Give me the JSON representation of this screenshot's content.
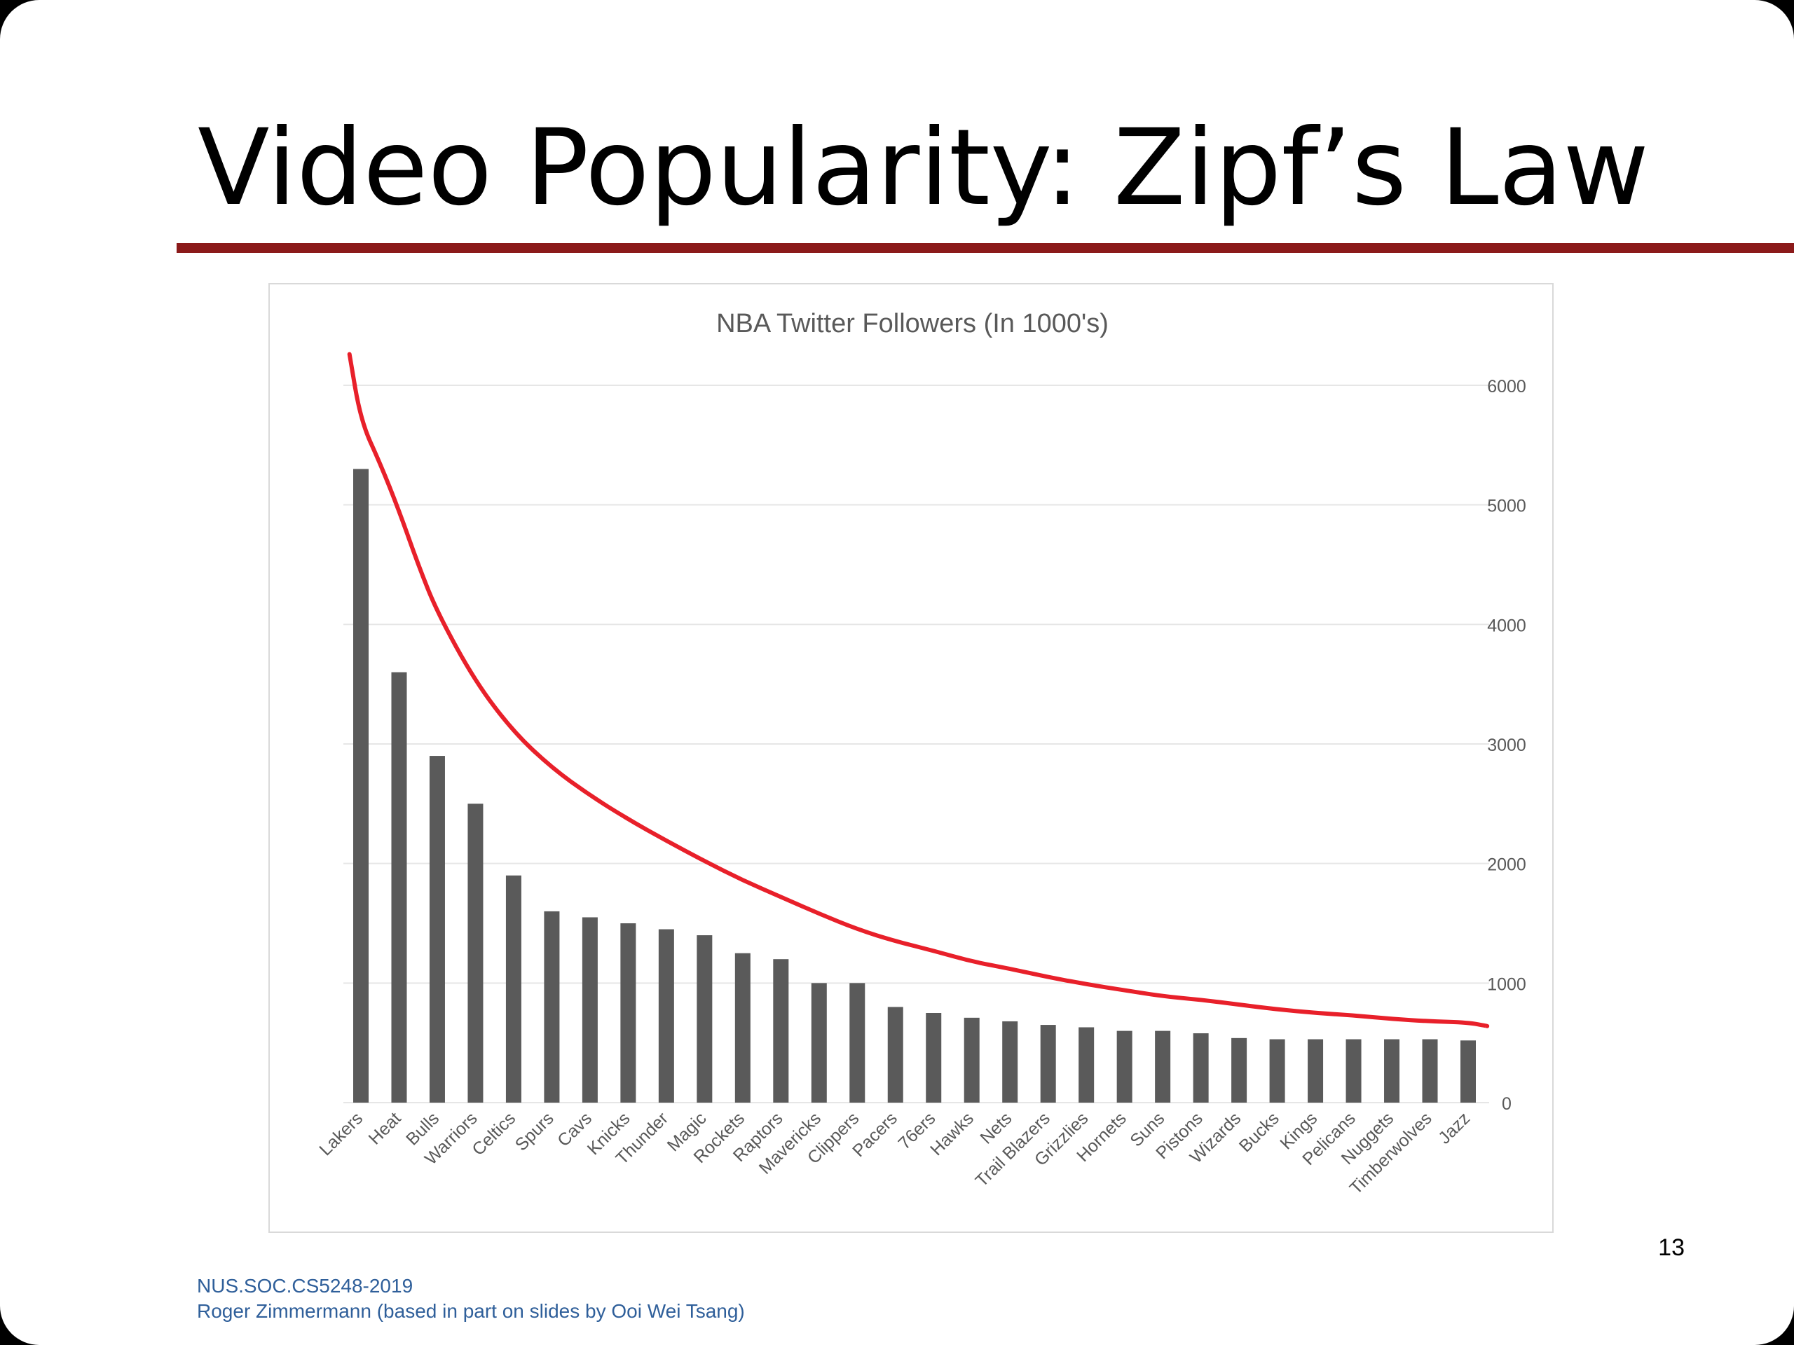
{
  "slide": {
    "title": "Video Popularity: Zipf’s Law",
    "page_number": "13",
    "footer_line1": "NUS.SOC.CS5248-2019",
    "footer_line2": "Roger Zimmermann (based in part on slides by Ooi Wei Tsang)",
    "colors": {
      "rule": "#8b1a1a",
      "footer_text": "#2f5f9a"
    }
  },
  "chart_data": {
    "type": "bar",
    "title": "NBA Twitter Followers (In 1000's)",
    "xlabel": "",
    "ylabel": "",
    "ylim": [
      0,
      6000
    ],
    "yticks": [
      0,
      1000,
      2000,
      3000,
      4000,
      5000,
      6000
    ],
    "y_axis_position": "right",
    "grid": true,
    "legend": "none",
    "categories": [
      "Lakers",
      "Heat",
      "Bulls",
      "Warriors",
      "Celtics",
      "Spurs",
      "Cavs",
      "Knicks",
      "Thunder",
      "Magic",
      "Rockets",
      "Raptors",
      "Mavericks",
      "Clippers",
      "Pacers",
      "76ers",
      "Hawks",
      "Nets",
      "Trail Blazers",
      "Grizzlies",
      "Hornets",
      "Suns",
      "Pistons",
      "Wizards",
      "Bucks",
      "Kings",
      "Pelicans",
      "Nuggets",
      "Timberwolves",
      "Jazz"
    ],
    "values": [
      5300,
      3600,
      2900,
      2500,
      1900,
      1600,
      1550,
      1500,
      1450,
      1400,
      1250,
      1200,
      1000,
      1000,
      800,
      750,
      710,
      680,
      650,
      630,
      600,
      600,
      580,
      540,
      530,
      530,
      530,
      530,
      530,
      520
    ],
    "trend_curve": {
      "type": "line",
      "x_start": 0.0,
      "x_end": 29.5,
      "x_note": "",
      "x": [
        -0.3,
        0.0,
        0.5,
        1.0,
        1.5,
        2.0,
        3.0,
        4.0,
        5.0,
        6.0,
        7.0,
        8.0,
        9.0,
        10.0,
        11.0,
        12.0,
        13.0,
        14.0,
        15.0,
        16.0,
        17.0,
        18.0,
        19.0,
        20.0,
        21.0,
        22.0,
        23.0,
        24.0,
        25.0,
        26.0,
        27.0,
        28.0,
        29.0,
        29.5
      ],
      "y": [
        6260,
        5700,
        5350,
        4950,
        4500,
        4100,
        3520,
        3100,
        2800,
        2570,
        2370,
        2190,
        2020,
        1860,
        1720,
        1580,
        1450,
        1350,
        1270,
        1180,
        1120,
        1050,
        990,
        940,
        890,
        860,
        820,
        780,
        750,
        730,
        700,
        680,
        670,
        640
      ],
      "color": "#e8202a"
    },
    "bar_color": "#5a5a5a",
    "gridline_color": "#e6e6e6"
  }
}
